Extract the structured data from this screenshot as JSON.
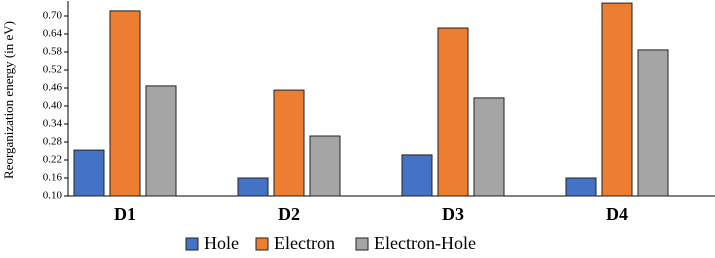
{
  "chart_data": {
    "type": "bar",
    "y_label": "Reorganization energy (in eV)",
    "categories": [
      "D1",
      "D2",
      "D3",
      "D4"
    ],
    "series": [
      {
        "name": "Hole",
        "color": "#4472c4",
        "values": [
          0.253,
          0.16,
          0.237,
          0.16
        ]
      },
      {
        "name": "Electron",
        "color": "#ed7d31",
        "values": [
          0.717,
          0.453,
          0.66,
          0.743
        ]
      },
      {
        "name": "Electron-Hole",
        "color": "#a5a5a5",
        "values": [
          0.467,
          0.3,
          0.427,
          0.587
        ]
      }
    ],
    "ylim": [
      0.1,
      0.75
    ],
    "yticks": [
      {
        "value": 0.1,
        "label": "0.10"
      },
      0.16,
      0.22,
      0.28,
      0.34,
      {
        "value": 0.4,
        "label": "0.40"
      },
      0.46,
      0.52,
      0.58,
      0.64,
      {
        "value": 0.7,
        "label": "0.70"
      }
    ],
    "grid": false,
    "legend": "bottom"
  }
}
